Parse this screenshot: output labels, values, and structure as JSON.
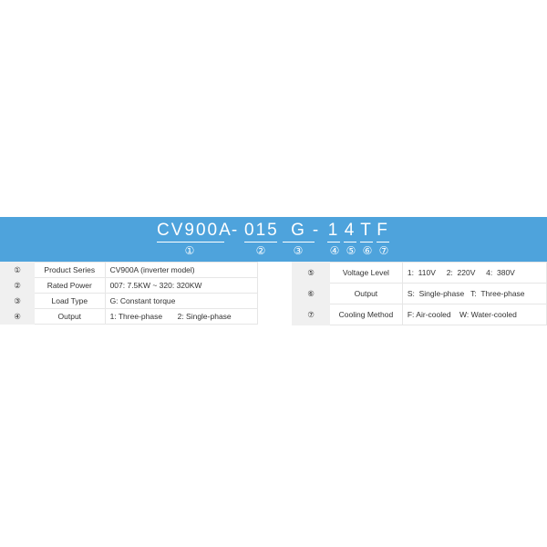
{
  "banner": {
    "segments": [
      "CV900A",
      "-",
      "015",
      "G",
      "-",
      "1",
      "4",
      "T",
      "F"
    ],
    "markers": [
      "①",
      "②",
      "③",
      "④",
      "⑤",
      "⑥",
      "⑦"
    ],
    "color": "#4ea3dc"
  },
  "left_table": [
    {
      "index": "①",
      "label": "Product Series",
      "value": "CV900A (inverter model)"
    },
    {
      "index": "②",
      "label": "Rated Power",
      "value": "007:  7.5KW ~ 320: 320KW"
    },
    {
      "index": "③",
      "label": "Load Type",
      "value": "G:  Constant torque"
    },
    {
      "index": "④",
      "label": "Output",
      "value": "1: Three-phase       2: Single-phase"
    }
  ],
  "right_table": [
    {
      "index": "⑤",
      "label": "Voltage Level",
      "value": "1:  110V     2:  220V     4:  380V"
    },
    {
      "index": "⑥",
      "label": "Output",
      "value": "S:  Single-phase   T:  Three-phase"
    },
    {
      "index": "⑦",
      "label": "Cooling Method",
      "value": "F: Air-cooled    W: Water-cooled"
    }
  ]
}
